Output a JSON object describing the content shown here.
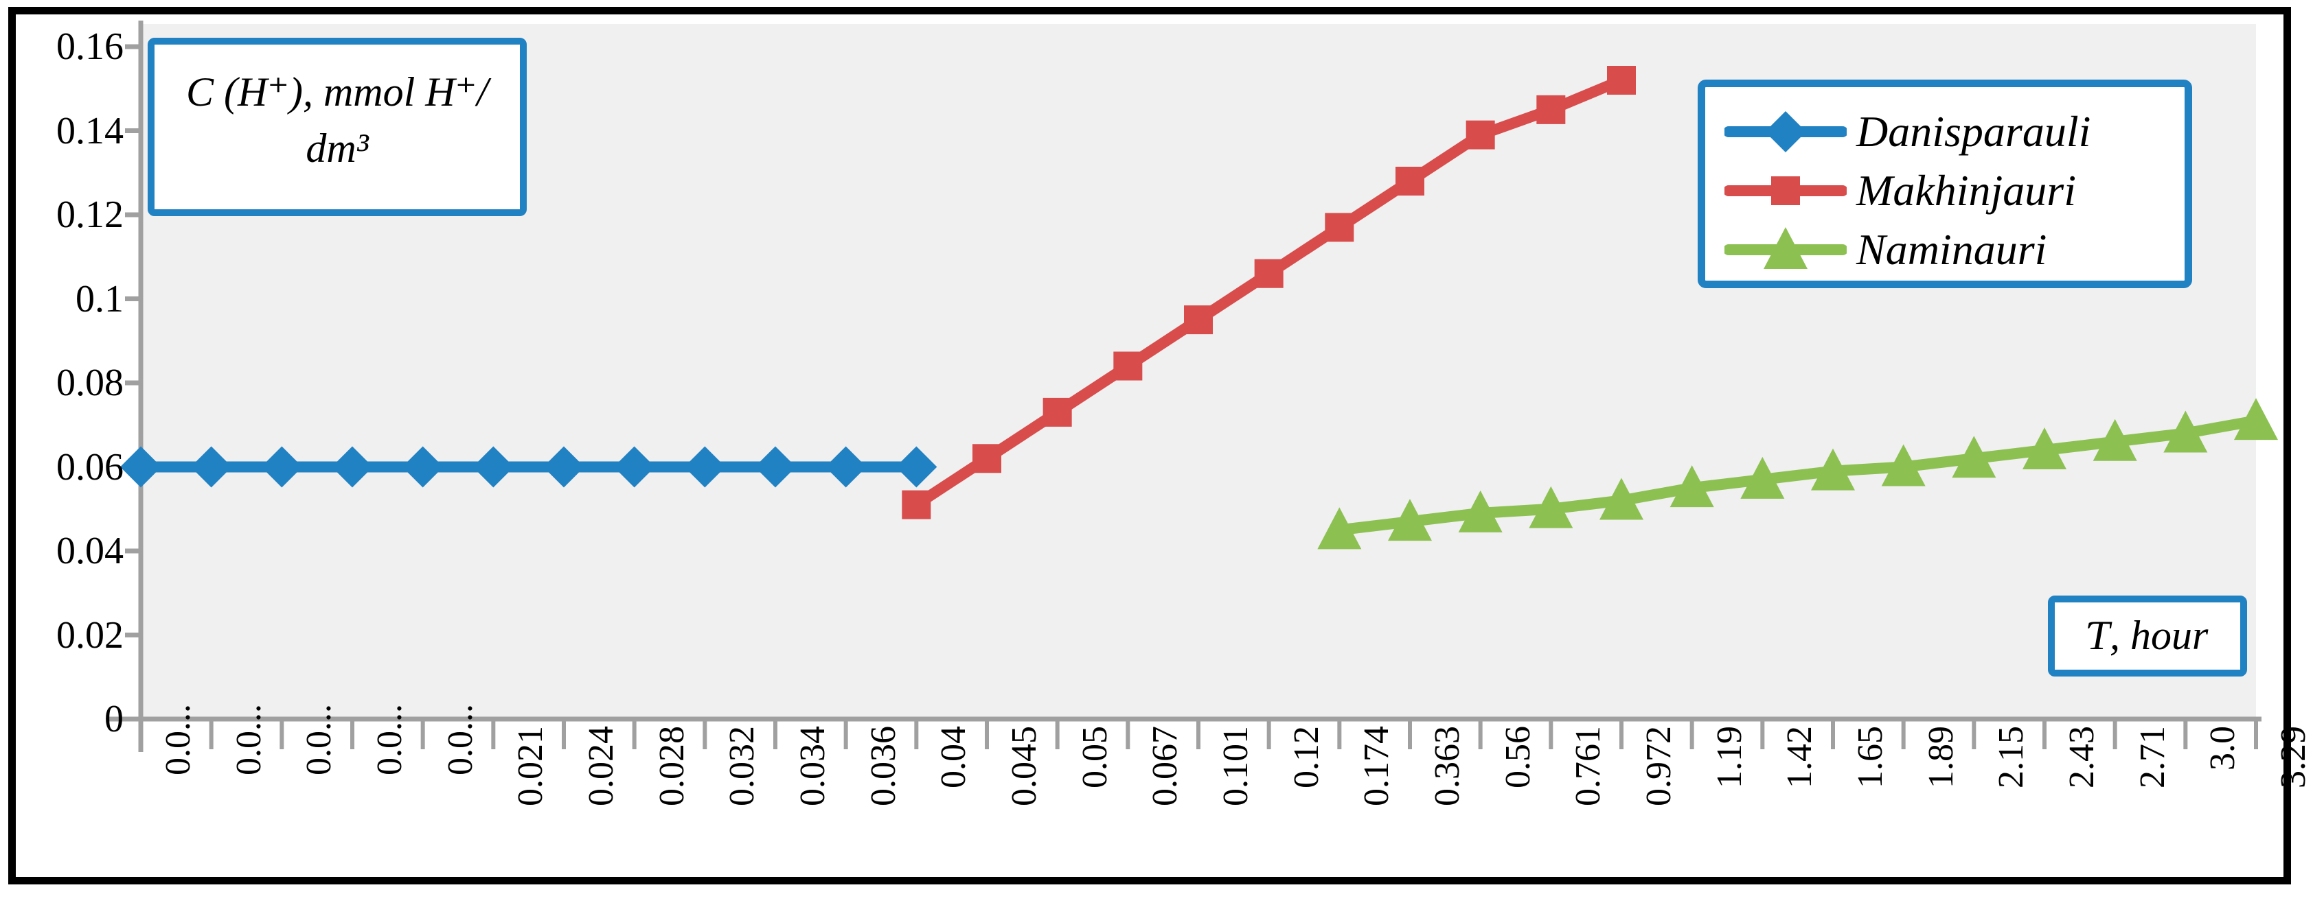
{
  "labels": {
    "y_axis_box_line1": "C (H⁺), mmol H⁺/",
    "y_axis_box_line2": "dm³",
    "x_axis_box": "Ƭ, hour"
  },
  "chart_data": {
    "type": "line",
    "title": "",
    "xlabel": "Ƭ, hour",
    "ylabel": "C (H⁺), mmol H⁺/dm³",
    "categories": [
      "0.0...",
      "0.0...",
      "0.0...",
      "0.0...",
      "0.0...",
      "0.021",
      "0.024",
      "0.028",
      "0.032",
      "0.034",
      "0.036",
      "0.04",
      "0.045",
      "0.05",
      "0.067",
      "0.101",
      "0.12",
      "0.174",
      "0.363",
      "0.56",
      "0.761",
      "0.972",
      "1.19",
      "1.42",
      "1.65",
      "1.89",
      "2.15",
      "2.43",
      "2.71",
      "3.0",
      "3.29"
    ],
    "y_tick_labels": [
      "0.16",
      "0.14",
      "0.12",
      "0.1",
      "0.08",
      "0.06",
      "0.04",
      "0.02",
      "0"
    ],
    "ylim": [
      0,
      0.16
    ],
    "y_tick_step": 0.02,
    "grid": "off",
    "legend_position": "top-right",
    "plot_bg": "#F0F0F0",
    "axis_color": "#A0A0A0",
    "series": [
      {
        "name": "Danisparauli",
        "color": "#2182C3",
        "marker": "diamond",
        "start_index": 0,
        "x": [
          "0.0...",
          "0.0...",
          "0.0...",
          "0.0...",
          "0.0...",
          "0.021",
          "0.024",
          "0.028",
          "0.032",
          "0.034",
          "0.036",
          "0.04"
        ],
        "values": [
          0.06,
          0.06,
          0.06,
          0.06,
          0.06,
          0.06,
          0.06,
          0.06,
          0.06,
          0.06,
          0.06,
          0.06
        ]
      },
      {
        "name": "Makhinjauri",
        "color": "#D94C4C",
        "marker": "square",
        "start_index": 11,
        "x": [
          "0.04",
          "0.045",
          "0.05",
          "0.067",
          "0.101",
          "0.12",
          "0.174",
          "0.363",
          "0.56",
          "0.761",
          "0.972"
        ],
        "values": [
          0.051,
          0.062,
          0.073,
          0.084,
          0.095,
          0.106,
          0.117,
          0.128,
          0.139,
          0.145,
          0.152
        ]
      },
      {
        "name": "Naminauri",
        "color": "#8CC152",
        "marker": "triangle",
        "start_index": 17,
        "x": [
          "0.174",
          "0.363",
          "0.56",
          "0.761",
          "0.972",
          "1.19",
          "1.42",
          "1.65",
          "1.89",
          "2.15",
          "2.43",
          "2.71",
          "3.0",
          "3.29"
        ],
        "values": [
          0.045,
          0.047,
          0.049,
          0.05,
          0.052,
          0.055,
          0.057,
          0.059,
          0.06,
          0.062,
          0.064,
          0.066,
          0.068,
          0.071
        ]
      }
    ]
  }
}
